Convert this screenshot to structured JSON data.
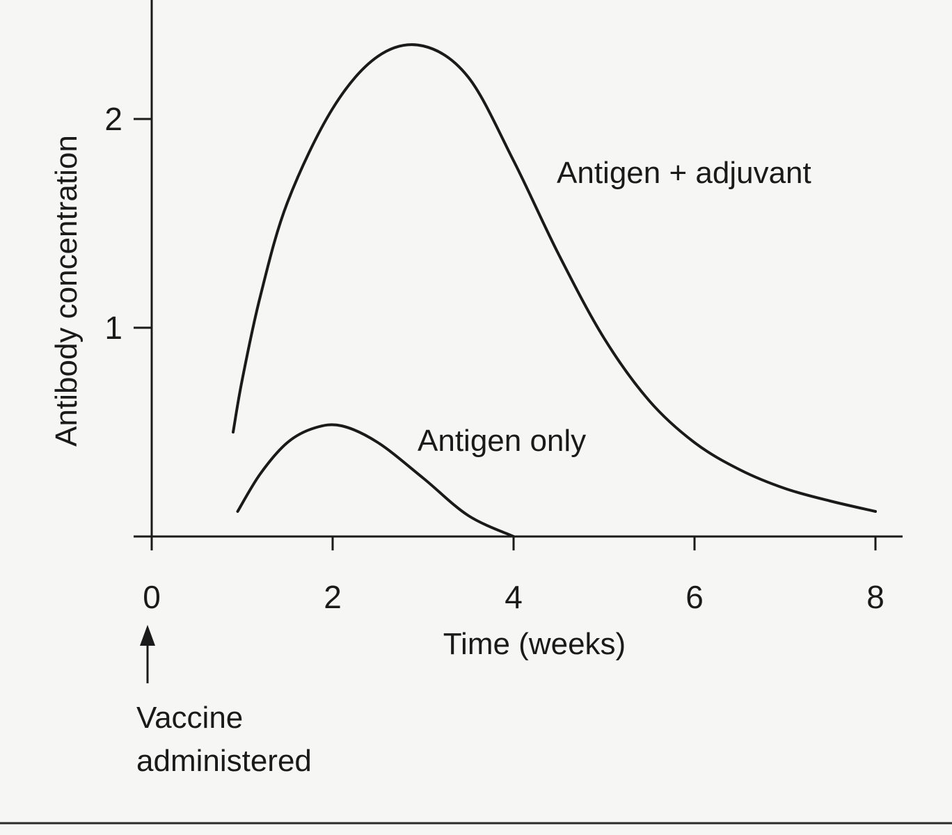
{
  "chart_data": {
    "type": "line",
    "title": "",
    "xlabel": "Time (weeks)",
    "ylabel": "Antibody concentration",
    "xlim": [
      0,
      8.3
    ],
    "ylim": [
      0,
      2.6
    ],
    "x_ticks": [
      "0",
      "2",
      "4",
      "6",
      "8"
    ],
    "y_ticks": [
      "1",
      "2"
    ],
    "grid": false,
    "legend": "none",
    "series": [
      {
        "name": "Antigen + adjuvant",
        "x": [
          0.9,
          1.0,
          1.2,
          1.5,
          2.0,
          2.5,
          3.0,
          3.5,
          4.0,
          4.5,
          5.0,
          5.5,
          6.0,
          6.5,
          7.0,
          7.5,
          8.0
        ],
        "y": [
          0.5,
          0.75,
          1.15,
          1.6,
          2.05,
          2.3,
          2.35,
          2.2,
          1.8,
          1.35,
          0.95,
          0.65,
          0.45,
          0.32,
          0.23,
          0.17,
          0.12
        ]
      },
      {
        "name": "Antigen only",
        "x": [
          0.95,
          1.2,
          1.5,
          1.8,
          2.1,
          2.5,
          3.0,
          3.5,
          4.0
        ],
        "y": [
          0.12,
          0.3,
          0.45,
          0.52,
          0.53,
          0.45,
          0.28,
          0.1,
          0.0
        ]
      }
    ],
    "annotations": [
      {
        "x": 0,
        "lines": [
          "Vaccine",
          "administered"
        ]
      }
    ]
  },
  "colors": {
    "line": "#1a1a1a",
    "background": "#f6f6f4"
  }
}
